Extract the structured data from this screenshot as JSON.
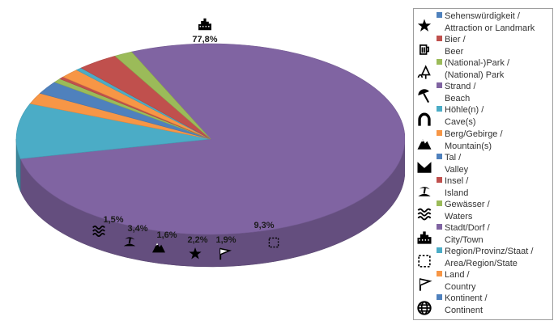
{
  "chart_data": {
    "type": "pie",
    "title": "",
    "legend_position": "right",
    "slices": [
      {
        "label_de": "Stadt/Dorf /",
        "label_en": "City/Town",
        "value": 77.8,
        "value_label": "77,8%",
        "color": "#8064a2",
        "icon": "city-icon"
      },
      {
        "label_de": "Region/Provinz/Staat /",
        "label_en": "Area/Region/State",
        "value": 9.3,
        "value_label": "9,3%",
        "color": "#4bacc6",
        "icon": "dashed-square-icon"
      },
      {
        "label_de": "Land /",
        "label_en": "Country",
        "value": 1.9,
        "value_label": "1,9%",
        "color": "#f79646",
        "icon": "flag-icon"
      },
      {
        "label_de": "Sehenswürdigkeit /",
        "label_en": "Attraction or Landmark",
        "value": 2.2,
        "value_label": "2,2%",
        "color": "#4f81bd",
        "icon": "star-icon"
      },
      {
        "label_de": "(National-)Park /",
        "label_en": "(National) Park",
        "value": 0.7,
        "value_label": "",
        "color": "#9bbb59",
        "icon": "park-icon"
      },
      {
        "label_de": "Bier /",
        "label_en": "Beer",
        "value": 0.4,
        "value_label": "",
        "color": "#c0504d",
        "icon": "beer-icon"
      },
      {
        "label_de": "Berg/Gebirge /",
        "label_en": "Mountain(s)",
        "value": 1.6,
        "value_label": "1,6%",
        "color": "#f79646",
        "icon": "mountain-icon"
      },
      {
        "label_de": "Höhle(n) /",
        "label_en": "Cave(s)",
        "value": 0.5,
        "value_label": "",
        "color": "#4bacc6",
        "icon": "cave-icon"
      },
      {
        "label_de": "Insel /",
        "label_en": "Island",
        "value": 3.4,
        "value_label": "3,4%",
        "color": "#c0504d",
        "icon": "island-icon"
      },
      {
        "label_de": "Gewässer /",
        "label_en": "Waters",
        "value": 1.5,
        "value_label": "1,5%",
        "color": "#9bbb59",
        "icon": "waves-icon"
      }
    ]
  },
  "legend": {
    "items": [
      {
        "de": "Sehenswürdigkeit /",
        "en": "Attraction or Landmark",
        "color": "#4f81bd",
        "icon": "star-icon"
      },
      {
        "de": "Bier /",
        "en": "Beer",
        "color": "#c0504d",
        "icon": "beer-icon"
      },
      {
        "de": "(National-)Park /",
        "en": "(National) Park",
        "color": "#9bbb59",
        "icon": "park-icon"
      },
      {
        "de": "Strand /",
        "en": "Beach",
        "color": "#8064a2",
        "icon": "beach-icon"
      },
      {
        "de": "Höhle(n) /",
        "en": "Cave(s)",
        "color": "#4bacc6",
        "icon": "cave-icon"
      },
      {
        "de": "Berg/Gebirge /",
        "en": "Mountain(s)",
        "color": "#f79646",
        "icon": "mountain-icon"
      },
      {
        "de": "Tal /",
        "en": "Valley",
        "color": "#4f81bd",
        "icon": "valley-icon"
      },
      {
        "de": "Insel /",
        "en": "Island",
        "color": "#c0504d",
        "icon": "island-icon"
      },
      {
        "de": "Gewässer /",
        "en": "Waters",
        "color": "#9bbb59",
        "icon": "waves-icon"
      },
      {
        "de": "Stadt/Dorf /",
        "en": "City/Town",
        "color": "#8064a2",
        "icon": "city-icon"
      },
      {
        "de": "Region/Provinz/Staat /",
        "en": "Area/Region/State",
        "color": "#4bacc6",
        "icon": "dashed-square-icon"
      },
      {
        "de": "Land /",
        "en": "Country",
        "color": "#f79646",
        "icon": "flag-icon"
      },
      {
        "de": "Kontinent /",
        "en": "Continent",
        "color": "#4f81bd",
        "icon": "globe-icon"
      }
    ]
  }
}
